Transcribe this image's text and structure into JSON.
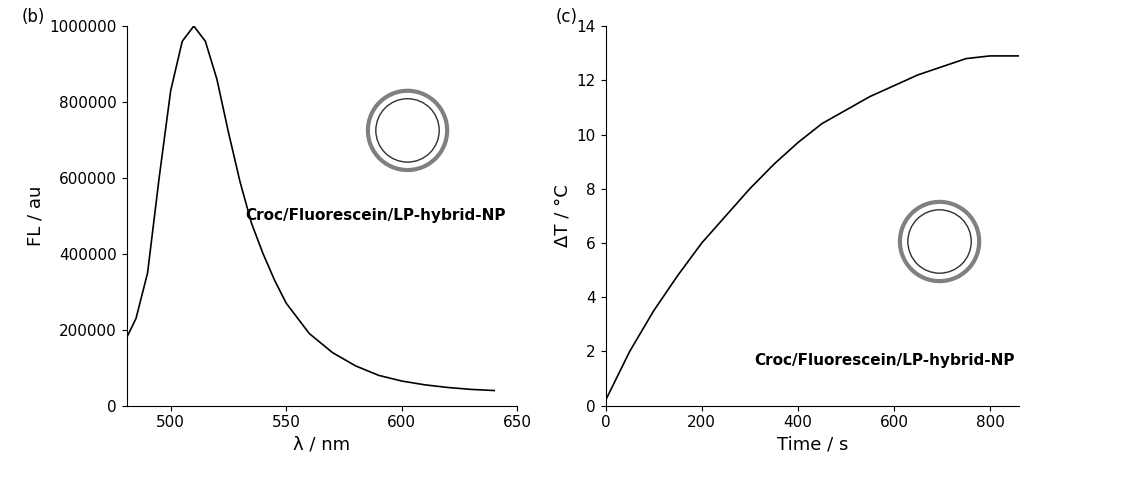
{
  "chart_data": [
    {
      "type": "line",
      "title": "(b)",
      "x_label": "λ / nm",
      "y_label": "FL / au",
      "annotations": [
        "Croc/Fluorescein/LP-hybrid-NP"
      ],
      "x": [
        481,
        485,
        490,
        495,
        500,
        505,
        510,
        515,
        520,
        525,
        530,
        535,
        540,
        545,
        550,
        560,
        570,
        580,
        590,
        600,
        610,
        620,
        630,
        640
      ],
      "values": [
        180000,
        230000,
        350000,
        600000,
        830000,
        960000,
        1000000,
        960000,
        860000,
        720000,
        590000,
        480000,
        400000,
        330000,
        270000,
        190000,
        140000,
        105000,
        80000,
        65000,
        55000,
        48000,
        43000,
        40000
      ],
      "color": "#000000",
      "xlim": [
        481,
        650
      ],
      "xticks": [
        500,
        550,
        600,
        650
      ],
      "ylim": [
        0,
        1000000
      ],
      "yticks": [
        0,
        200000,
        400000,
        600000,
        800000,
        1000000
      ]
    },
    {
      "type": "line",
      "title": "(c)",
      "x_label": "Time / s",
      "y_label": "ΔT / °C",
      "annotations": [
        "Croc/Fluorescein/LP-hybrid-NP"
      ],
      "x": [
        0,
        50,
        100,
        150,
        200,
        250,
        300,
        350,
        400,
        450,
        500,
        550,
        600,
        650,
        700,
        750,
        800,
        860
      ],
      "values": [
        0.2,
        2.0,
        3.5,
        4.8,
        6.0,
        7.0,
        8.0,
        8.9,
        9.7,
        10.4,
        10.9,
        11.4,
        11.8,
        12.2,
        12.5,
        12.8,
        12.9,
        12.9
      ],
      "color": "#000000",
      "xlim": [
        0,
        860
      ],
      "xticks": [
        0,
        200,
        400,
        600,
        800
      ],
      "ylim": [
        0,
        14
      ],
      "yticks": [
        0,
        2,
        4,
        6,
        8,
        10,
        12,
        14
      ]
    }
  ]
}
